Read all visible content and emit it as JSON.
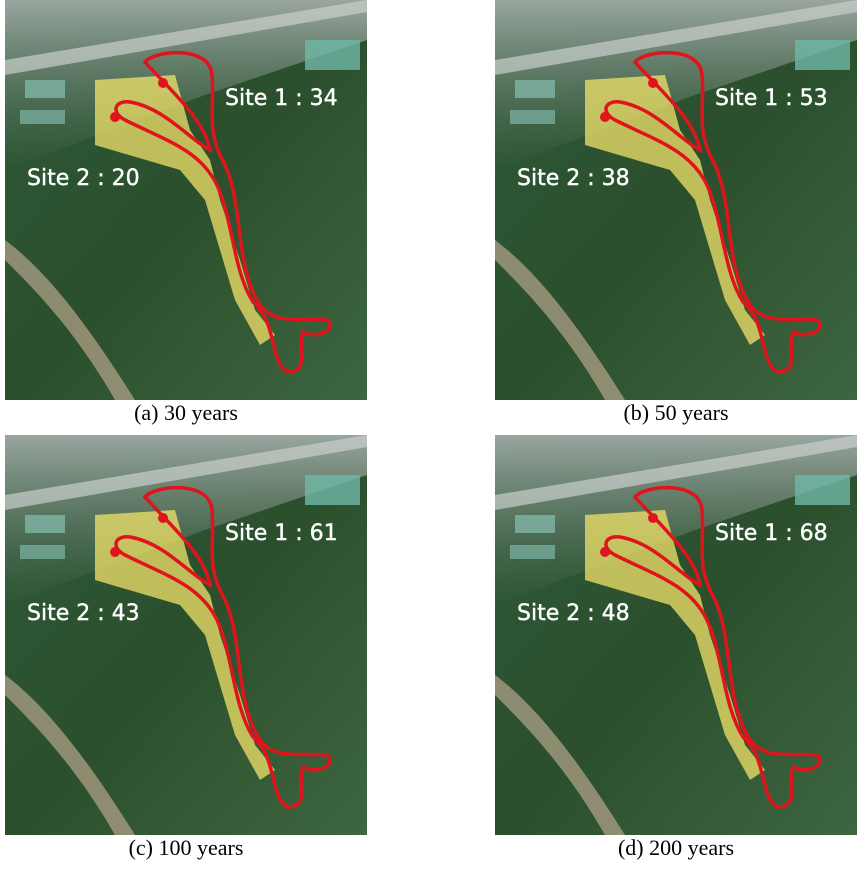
{
  "panels": [
    {
      "site1": "Site 1 : 34",
      "site2": "Site 2 : 20",
      "caption": "(a) 30 years"
    },
    {
      "site1": "Site 1 : 53",
      "site2": "Site 2 : 38",
      "caption": "(b) 50 years"
    },
    {
      "site1": "Site 1 : 61",
      "site2": "Site 2 : 43",
      "caption": "(c) 100 years"
    },
    {
      "site1": "Site 1 : 68",
      "site2": "Site 2 : 48",
      "caption": "(d) 200 years"
    }
  ]
}
